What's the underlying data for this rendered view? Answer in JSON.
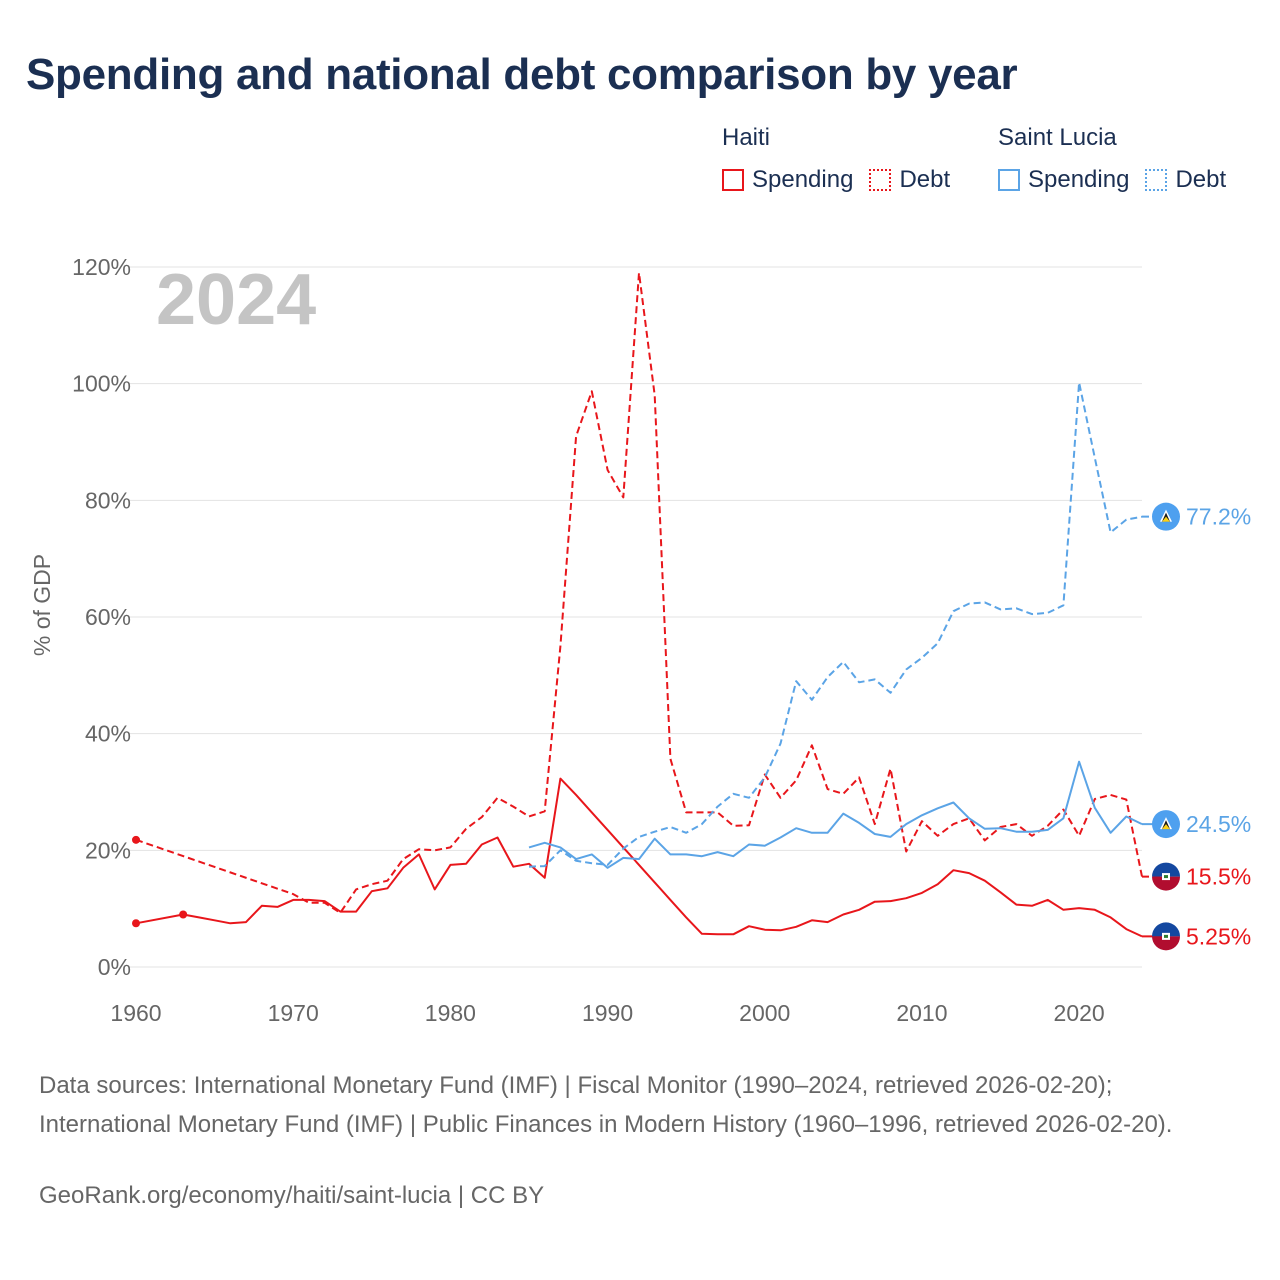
{
  "title": "Spending and national debt comparison by year",
  "legend": {
    "groups": [
      {
        "name": "Haiti",
        "color": "#e8161b",
        "items": [
          {
            "label": "Spending",
            "style": "solid"
          },
          {
            "label": "Debt",
            "style": "dotted"
          }
        ]
      },
      {
        "name": "Saint Lucia",
        "color": "#5ba4e6",
        "items": [
          {
            "label": "Spending",
            "style": "solid"
          },
          {
            "label": "Debt",
            "style": "dotted"
          }
        ]
      }
    ]
  },
  "chart_data": {
    "type": "line",
    "year_label": "2024",
    "ylabel": "% of GDP",
    "xlim": [
      1960,
      2024
    ],
    "ylim": [
      0,
      120
    ],
    "x_ticks": [
      1960,
      1970,
      1980,
      1990,
      2000,
      2010,
      2020
    ],
    "y_ticks": [
      0,
      20,
      40,
      60,
      80,
      100,
      120
    ],
    "y_tick_labels": [
      "0%",
      "20%",
      "40%",
      "60%",
      "80%",
      "100%",
      "120%"
    ],
    "series": [
      {
        "name": "Haiti Spending",
        "country": "Haiti",
        "kind": "Spending",
        "color": "#e8161b",
        "dash": "solid",
        "end_label": "5.25%",
        "points": [
          [
            1960,
            7.5
          ],
          [
            1963,
            9
          ],
          [
            1964,
            8.5
          ],
          [
            1965,
            8
          ],
          [
            1966,
            7.5
          ],
          [
            1967,
            7.7
          ],
          [
            1968,
            10.5
          ],
          [
            1969,
            10.3
          ],
          [
            1970,
            11.5
          ],
          [
            1971,
            11.5
          ],
          [
            1972,
            11.3
          ],
          [
            1973,
            9.5
          ],
          [
            1974,
            9.5
          ],
          [
            1975,
            13
          ],
          [
            1976,
            13.5
          ],
          [
            1977,
            17
          ],
          [
            1978,
            19.3
          ],
          [
            1979,
            13.3
          ],
          [
            1980,
            17.5
          ],
          [
            1981,
            17.7
          ],
          [
            1982,
            21
          ],
          [
            1983,
            22.2
          ],
          [
            1984,
            17.2
          ],
          [
            1985,
            17.7
          ],
          [
            1986,
            15.3
          ],
          [
            1987,
            32.3
          ],
          [
            1988,
            29.5
          ],
          [
            1989,
            26.5
          ],
          [
            1990,
            23.5
          ],
          [
            1991,
            20.5
          ],
          [
            1992,
            17.5
          ],
          [
            1993,
            14.5
          ],
          [
            1994,
            11.5
          ],
          [
            1995,
            8.5
          ],
          [
            1996,
            5.7
          ],
          [
            1997,
            5.6
          ],
          [
            1998,
            5.6
          ],
          [
            1999,
            7
          ],
          [
            2000,
            6.4
          ],
          [
            2001,
            6.3
          ],
          [
            2002,
            6.9
          ],
          [
            2003,
            8
          ],
          [
            2004,
            7.7
          ],
          [
            2005,
            9
          ],
          [
            2006,
            9.8
          ],
          [
            2007,
            11.2
          ],
          [
            2008,
            11.3
          ],
          [
            2009,
            11.8
          ],
          [
            2010,
            12.7
          ],
          [
            2011,
            14.2
          ],
          [
            2012,
            16.6
          ],
          [
            2013,
            16.1
          ],
          [
            2014,
            14.8
          ],
          [
            2015,
            12.8
          ],
          [
            2016,
            10.7
          ],
          [
            2017,
            10.5
          ],
          [
            2018,
            11.5
          ],
          [
            2019,
            9.8
          ],
          [
            2020,
            10.1
          ],
          [
            2021,
            9.8
          ],
          [
            2022,
            8.5
          ],
          [
            2023,
            6.5
          ],
          [
            2024,
            5.25
          ]
        ]
      },
      {
        "name": "Haiti Debt",
        "country": "Haiti",
        "kind": "Debt",
        "color": "#e8161b",
        "dash": "dashed",
        "end_label": "15.5%",
        "points": [
          [
            1960,
            21.8
          ],
          [
            1970,
            12.5
          ],
          [
            1971,
            11
          ],
          [
            1972,
            11
          ],
          [
            1973,
            9.3
          ],
          [
            1974,
            13.3
          ],
          [
            1975,
            14.2
          ],
          [
            1976,
            14.8
          ],
          [
            1977,
            18.5
          ],
          [
            1978,
            20.2
          ],
          [
            1979,
            20
          ],
          [
            1980,
            20.5
          ],
          [
            1981,
            23.7
          ],
          [
            1982,
            25.7
          ],
          [
            1983,
            29
          ],
          [
            1984,
            27.5
          ],
          [
            1985,
            25.8
          ],
          [
            1986,
            26.7
          ],
          [
            1987,
            55
          ],
          [
            1988,
            91
          ],
          [
            1989,
            98.7
          ],
          [
            1990,
            85.2
          ],
          [
            1991,
            80.5
          ],
          [
            1992,
            119
          ],
          [
            1993,
            98
          ],
          [
            1994,
            35.7
          ],
          [
            1995,
            26.5
          ],
          [
            1996,
            26.5
          ],
          [
            1997,
            26.5
          ],
          [
            1998,
            24.2
          ],
          [
            1999,
            24.3
          ],
          [
            2000,
            33
          ],
          [
            2001,
            29
          ],
          [
            2002,
            32
          ],
          [
            2003,
            38
          ],
          [
            2004,
            30.5
          ],
          [
            2005,
            29.7
          ],
          [
            2006,
            32.5
          ],
          [
            2007,
            24.5
          ],
          [
            2008,
            34
          ],
          [
            2009,
            19.8
          ],
          [
            2010,
            25
          ],
          [
            2011,
            22.5
          ],
          [
            2012,
            24.5
          ],
          [
            2013,
            25.5
          ],
          [
            2014,
            21.7
          ],
          [
            2015,
            24
          ],
          [
            2016,
            24.5
          ],
          [
            2017,
            22.5
          ],
          [
            2018,
            24.2
          ],
          [
            2019,
            27
          ],
          [
            2020,
            22.5
          ],
          [
            2021,
            28.8
          ],
          [
            2022,
            29.5
          ],
          [
            2023,
            28.7
          ],
          [
            2024,
            15.5
          ]
        ]
      },
      {
        "name": "Saint Lucia Spending",
        "country": "Saint Lucia",
        "kind": "Spending",
        "color": "#5ba4e6",
        "dash": "solid",
        "end_label": "24.5%",
        "points": [
          [
            1985,
            20.5
          ],
          [
            1986,
            21.3
          ],
          [
            1987,
            20.5
          ],
          [
            1988,
            18.5
          ],
          [
            1989,
            19.3
          ],
          [
            1990,
            17
          ],
          [
            1991,
            18.7
          ],
          [
            1992,
            18.5
          ],
          [
            1993,
            22
          ],
          [
            1994,
            19.3
          ],
          [
            1995,
            19.3
          ],
          [
            1996,
            19
          ],
          [
            1997,
            19.7
          ],
          [
            1998,
            19
          ],
          [
            1999,
            21
          ],
          [
            2000,
            20.8
          ],
          [
            2001,
            22.2
          ],
          [
            2002,
            23.8
          ],
          [
            2003,
            23
          ],
          [
            2004,
            23
          ],
          [
            2005,
            26.3
          ],
          [
            2006,
            24.7
          ],
          [
            2007,
            22.8
          ],
          [
            2008,
            22.3
          ],
          [
            2009,
            24.5
          ],
          [
            2010,
            26
          ],
          [
            2011,
            27.2
          ],
          [
            2012,
            28.2
          ],
          [
            2013,
            25.5
          ],
          [
            2014,
            23.7
          ],
          [
            2015,
            23.8
          ],
          [
            2016,
            23.2
          ],
          [
            2017,
            23.2
          ],
          [
            2018,
            23.5
          ],
          [
            2019,
            25.5
          ],
          [
            2020,
            35.2
          ],
          [
            2021,
            27.3
          ],
          [
            2022,
            23
          ],
          [
            2023,
            25.8
          ],
          [
            2024,
            24.5
          ]
        ]
      },
      {
        "name": "Saint Lucia Debt",
        "country": "Saint Lucia",
        "kind": "Debt",
        "color": "#5ba4e6",
        "dash": "dashed",
        "end_label": "77.2%",
        "points": [
          [
            1985,
            17.2
          ],
          [
            1986,
            17.3
          ],
          [
            1987,
            20
          ],
          [
            1988,
            18.2
          ],
          [
            1989,
            17.8
          ],
          [
            1990,
            17.5
          ],
          [
            1991,
            20.3
          ],
          [
            1992,
            22.3
          ],
          [
            1993,
            23.2
          ],
          [
            1994,
            24
          ],
          [
            1995,
            23
          ],
          [
            1996,
            24.5
          ],
          [
            1997,
            27.5
          ],
          [
            1998,
            29.7
          ],
          [
            1999,
            29
          ],
          [
            2000,
            32.5
          ],
          [
            2001,
            38.3
          ],
          [
            2002,
            49
          ],
          [
            2003,
            45.8
          ],
          [
            2004,
            49.7
          ],
          [
            2005,
            52.3
          ],
          [
            2006,
            48.8
          ],
          [
            2007,
            49.3
          ],
          [
            2008,
            47
          ],
          [
            2009,
            51
          ],
          [
            2010,
            53
          ],
          [
            2011,
            55.5
          ],
          [
            2012,
            61
          ],
          [
            2013,
            62.3
          ],
          [
            2014,
            62.5
          ],
          [
            2015,
            61.3
          ],
          [
            2016,
            61.5
          ],
          [
            2017,
            60.5
          ],
          [
            2018,
            60.7
          ],
          [
            2019,
            62
          ],
          [
            2020,
            100.2
          ],
          [
            2021,
            87.3
          ],
          [
            2022,
            74.5
          ],
          [
            2023,
            76.7
          ],
          [
            2024,
            77.2
          ]
        ]
      }
    ],
    "isolated_markers": [
      {
        "series": "Haiti Spending",
        "year": 1960,
        "value": 7.5
      },
      {
        "series": "Haiti Spending",
        "year": 1963,
        "value": 9
      },
      {
        "series": "Haiti Debt",
        "year": 1960,
        "value": 21.8
      }
    ],
    "end_badges": [
      {
        "flag": "saint-lucia-flag-icon",
        "series": "Saint Lucia Debt"
      },
      {
        "flag": "saint-lucia-flag-icon",
        "series": "Saint Lucia Spending"
      },
      {
        "flag": "haiti-flag-icon",
        "series": "Haiti Debt"
      },
      {
        "flag": "haiti-flag-icon",
        "series": "Haiti Spending"
      }
    ]
  },
  "sources": "Data sources: International Monetary Fund (IMF) | Fiscal Monitor (1990–2024, retrieved 2026-02-20); International Monetary Fund (IMF) | Public Finances in Modern History (1960–1996, retrieved 2026-02-20).",
  "footer": "GeoRank.org/economy/haiti/saint-lucia | CC BY"
}
